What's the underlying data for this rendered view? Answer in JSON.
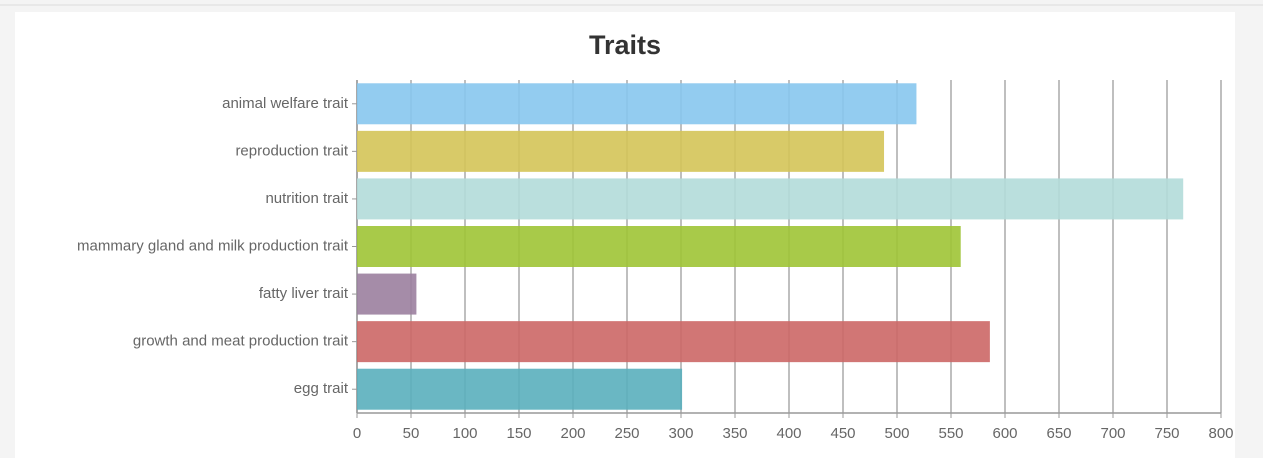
{
  "chart_data": {
    "type": "bar",
    "orientation": "horizontal",
    "title": "Traits",
    "categories": [
      "animal welfare trait",
      "reproduction trait",
      "nutrition trait",
      "mammary gland and milk production trait",
      "fatty liver trait",
      "growth and meat production trait",
      "egg trait"
    ],
    "values": [
      518,
      488,
      765,
      559,
      55,
      586,
      301
    ],
    "colors": [
      "#87c6ee",
      "#d4c458",
      "#b3dcd9",
      "#9ec435",
      "#9b7f9e",
      "#cc6766",
      "#5aafbc"
    ],
    "xlim": [
      0,
      800
    ],
    "xticks": [
      0,
      50,
      100,
      150,
      200,
      250,
      300,
      350,
      400,
      450,
      500,
      550,
      600,
      650,
      700,
      750,
      800
    ],
    "grid": true
  }
}
